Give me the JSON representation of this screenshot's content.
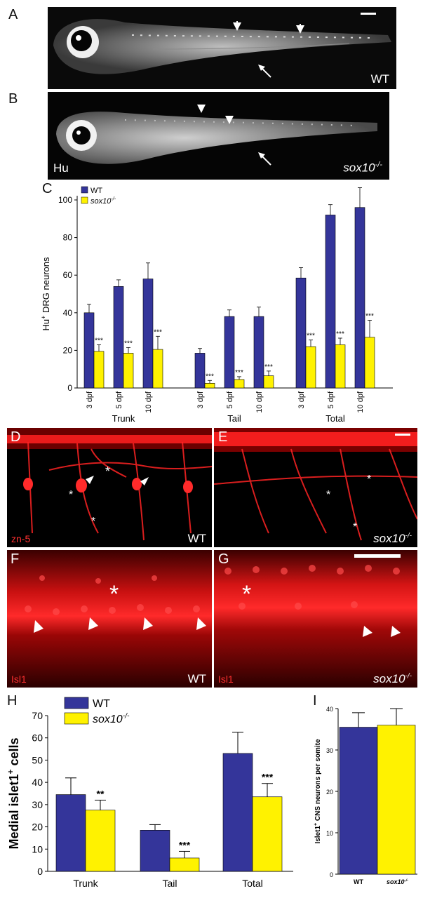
{
  "colors": {
    "wt": "#34359a",
    "mutant": "#fff200",
    "fluor_red": "#ff2020"
  },
  "panels": {
    "A": {
      "label": "A",
      "genotype": "WT"
    },
    "B": {
      "label": "B",
      "stain": "Hu",
      "genotype": "sox10",
      "genotype_sup": "-/-"
    },
    "C": {
      "label": "C"
    },
    "D": {
      "label": "D",
      "stain": "zn-5",
      "genotype": "WT"
    },
    "E": {
      "label": "E",
      "genotype": "sox10",
      "genotype_sup": "-/-"
    },
    "F": {
      "label": "F",
      "stain": "Isl1",
      "genotype": "WT"
    },
    "G": {
      "label": "G",
      "stain": "Isl1",
      "genotype": "sox10",
      "genotype_sup": "-/-"
    },
    "H": {
      "label": "H"
    },
    "I": {
      "label": "I"
    }
  },
  "chart_data": [
    {
      "id": "C",
      "type": "bar",
      "ylabel": "Hu+ DRG neurons",
      "ylabel_main": "Hu",
      "ylabel_sup": "+",
      "ylabel_rest": " DRG neurons",
      "ylim": [
        0,
        100
      ],
      "yticks": [
        "0",
        "20",
        "40",
        "60",
        "80",
        "100"
      ],
      "legend": {
        "placement": "top-left",
        "entries": [
          "WT",
          "sox10-/-"
        ]
      },
      "groups": [
        "Trunk",
        "Tail",
        "Total"
      ],
      "categories": [
        "3 dpf",
        "5 dpf",
        "10 dpf",
        "3 dpf",
        "5 dpf",
        "10 dpf",
        "3 dpf",
        "5 dpf",
        "10 dpf"
      ],
      "series": [
        {
          "name": "WT",
          "values": [
            40,
            54,
            58,
            18.5,
            38,
            38,
            58.5,
            92,
            96
          ],
          "errors": [
            4.5,
            3.5,
            8.5,
            2.5,
            3.5,
            5,
            5.5,
            5.5,
            10.5
          ]
        },
        {
          "name": "sox10-/-",
          "values": [
            19.5,
            18.5,
            20.5,
            2.5,
            4.5,
            6.5,
            22,
            23,
            27
          ],
          "errors": [
            3.5,
            3,
            7,
            1.5,
            1.5,
            2.5,
            3.5,
            3.5,
            9
          ]
        }
      ],
      "significance": [
        "***",
        "***",
        "***",
        "***",
        "***",
        "***",
        "***",
        "***",
        "***"
      ]
    },
    {
      "id": "H",
      "type": "bar",
      "ylabel": "Medial islet1+ cells",
      "ylabel_main": "Medial islet1",
      "ylabel_sup": "+",
      "ylabel_rest": " cells",
      "ylim": [
        0,
        70
      ],
      "yticks": [
        "0",
        "10",
        "20",
        "30",
        "40",
        "50",
        "60",
        "70"
      ],
      "legend": {
        "placement": "top-left",
        "entries": [
          "WT",
          "sox10-/-"
        ]
      },
      "categories": [
        "Trunk",
        "Tail",
        "Total"
      ],
      "series": [
        {
          "name": "WT",
          "values": [
            34.5,
            18.5,
            53
          ],
          "errors": [
            7.5,
            2.5,
            9.5
          ]
        },
        {
          "name": "sox10-/-",
          "values": [
            27.5,
            6,
            33.5
          ],
          "errors": [
            4.5,
            3,
            6
          ]
        }
      ],
      "significance": [
        "**",
        "***",
        "***"
      ]
    },
    {
      "id": "I",
      "type": "bar",
      "ylabel": "Islet1+ CNS neurons per somite",
      "ylabel_main": "Islet1",
      "ylabel_sup": "+",
      "ylabel_rest": " CNS neurons per somite",
      "ylim": [
        0,
        40
      ],
      "yticks": [
        "0",
        "10",
        "20",
        "30",
        "40"
      ],
      "categories": [
        "WT",
        "sox10-/-"
      ],
      "values": [
        35.5,
        36
      ],
      "errors": [
        3.5,
        4
      ]
    }
  ]
}
